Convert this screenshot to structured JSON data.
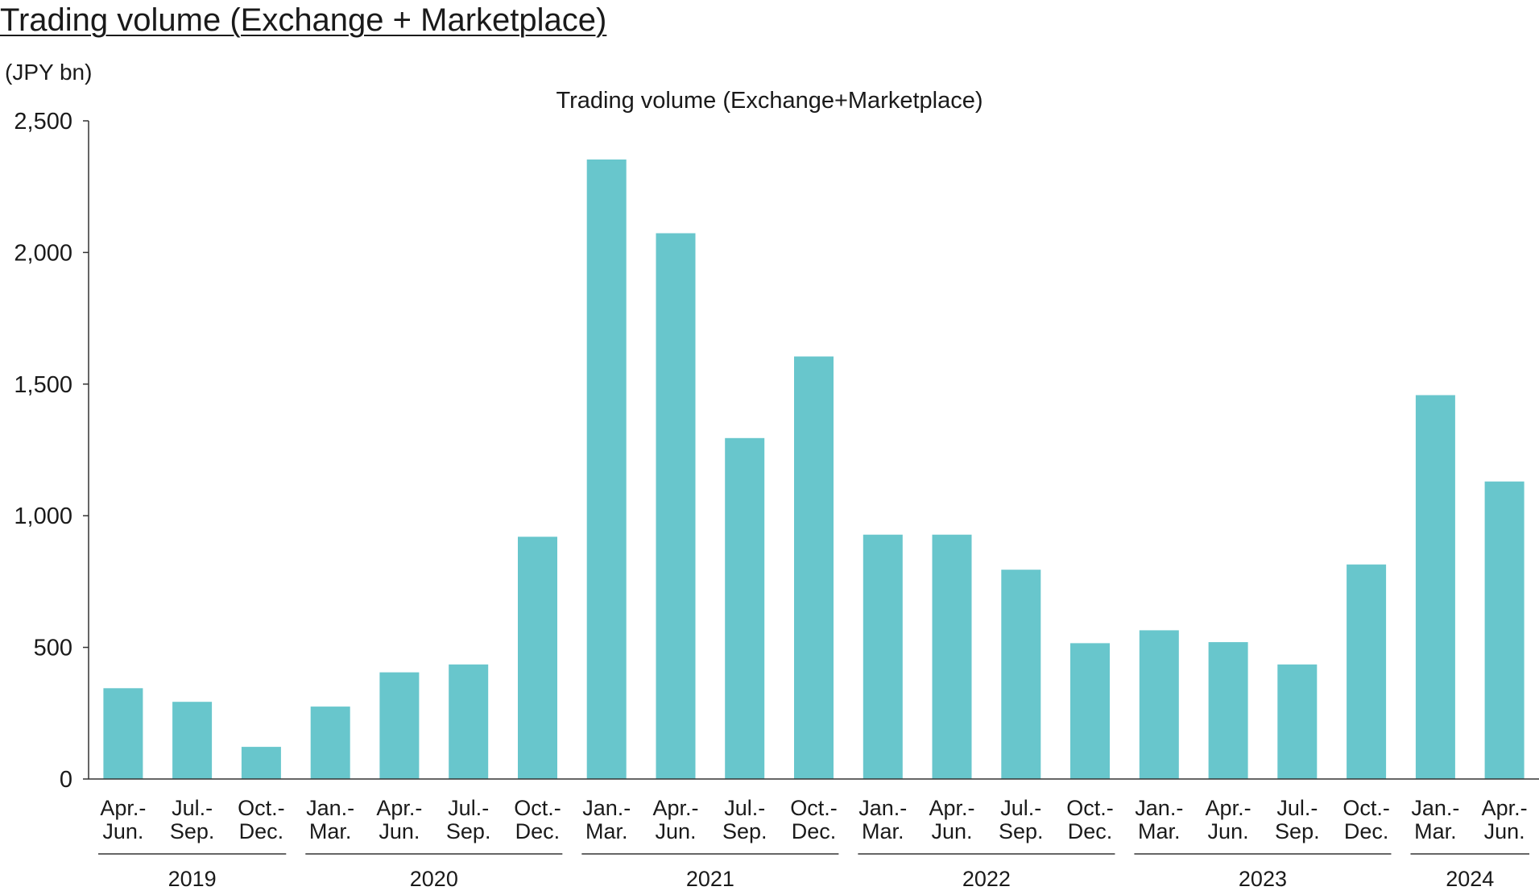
{
  "page_title": "Trading volume (Exchange + Marketplace)",
  "chart_data": {
    "type": "bar",
    "title": "Trading volume (Exchange+Marketplace)",
    "ylabel": "(JPY bn)",
    "xlabel": "",
    "ylim": [
      0,
      2500
    ],
    "yticks": [
      {
        "value": 0,
        "label": "0"
      },
      {
        "value": 500,
        "label": "500"
      },
      {
        "value": 1000,
        "label": "1,000"
      },
      {
        "value": 1500,
        "label": "1,500"
      },
      {
        "value": 2000,
        "label": "2,000"
      },
      {
        "value": 2500,
        "label": "2,500"
      }
    ],
    "categories": [
      [
        "Apr.-",
        "Jun."
      ],
      [
        "Jul.-",
        "Sep."
      ],
      [
        "Oct.-",
        "Dec."
      ],
      [
        "Jan.-",
        "Mar."
      ],
      [
        "Apr.-",
        "Jun."
      ],
      [
        "Jul.-",
        "Sep."
      ],
      [
        "Oct.-",
        "Dec."
      ],
      [
        "Jan.-",
        "Mar."
      ],
      [
        "Apr.-",
        "Jun."
      ],
      [
        "Jul.-",
        "Sep."
      ],
      [
        "Oct.-",
        "Dec."
      ],
      [
        "Jan.-",
        "Mar."
      ],
      [
        "Apr.-",
        "Jun."
      ],
      [
        "Jul.-",
        "Sep."
      ],
      [
        "Oct.-",
        "Dec."
      ],
      [
        "Jan.-",
        "Mar."
      ],
      [
        "Apr.-",
        "Jun."
      ],
      [
        "Jul.-",
        "Sep."
      ],
      [
        "Oct.-",
        "Dec."
      ],
      [
        "Jan.-",
        "Mar."
      ],
      [
        "Apr.-",
        "Jun."
      ]
    ],
    "values": [
      345,
      293,
      122,
      275,
      405,
      435,
      920,
      2353,
      2073,
      1295,
      1605,
      928,
      928,
      795,
      516,
      565,
      520,
      435,
      815,
      1458,
      1130
    ],
    "year_groups": [
      {
        "label": "2019",
        "start": 0,
        "end": 2
      },
      {
        "label": "2020",
        "start": 3,
        "end": 6
      },
      {
        "label": "2021",
        "start": 7,
        "end": 10
      },
      {
        "label": "2022",
        "start": 11,
        "end": 14
      },
      {
        "label": "2023",
        "start": 15,
        "end": 18
      },
      {
        "label": "2024",
        "start": 19,
        "end": 20
      }
    ],
    "bar_color": "#68c6cc",
    "grid": false,
    "legend": "none"
  }
}
